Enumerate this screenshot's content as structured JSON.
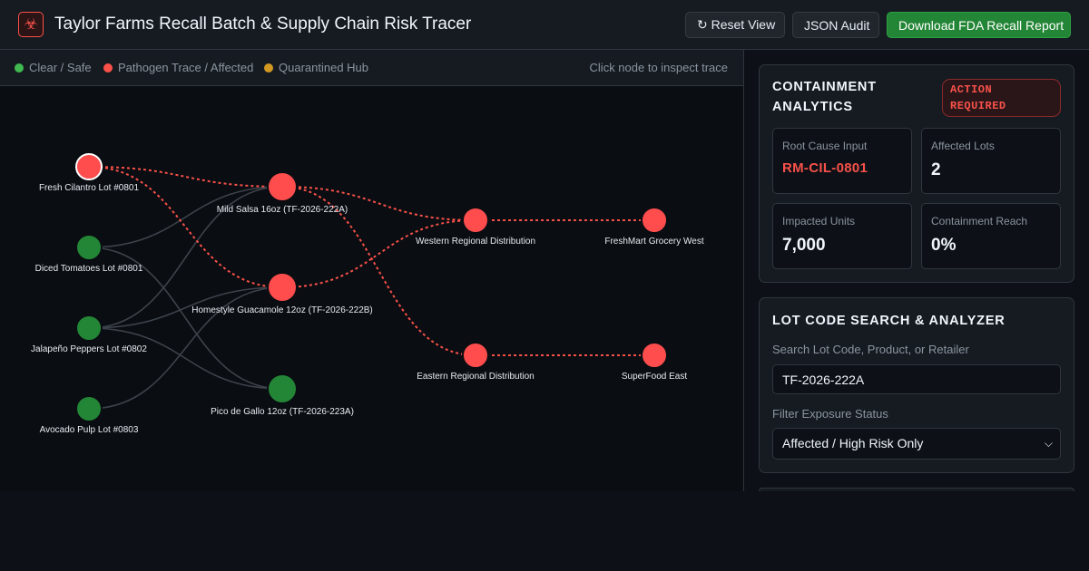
{
  "header": {
    "logo_icon": "biohazard-icon",
    "logo_glyph": "☣",
    "title": "Taylor Farms Recall Batch & Supply Chain Risk Tracer",
    "reset_label": "↻ Reset View",
    "json_label": "JSON Audit",
    "fda_label": "Download FDA Recall Report"
  },
  "legend": {
    "items": [
      {
        "label": "Clear / Safe",
        "color": "#3fb950"
      },
      {
        "label": "Pathogen Trace / Affected",
        "color": "#f85149"
      },
      {
        "label": "Quarantined Hub",
        "color": "#d29922"
      }
    ],
    "hint": "Click node to inspect trace"
  },
  "colors": {
    "affected": "#ff4d4d",
    "safe": "#238636",
    "edge_affected": "#f85149",
    "edge_safe": "#3d434b",
    "accent_green": "#238636"
  },
  "graph": {
    "nodes": [
      {
        "id": "n1",
        "label": "Fresh Cilantro Lot #0801",
        "status": "affected",
        "selected": true
      },
      {
        "id": "n2",
        "label": "Diced Tomatoes Lot #0801",
        "status": "safe"
      },
      {
        "id": "n3",
        "label": "Jalapeño Peppers Lot #0802",
        "status": "safe"
      },
      {
        "id": "n4",
        "label": "Avocado Pulp Lot #0803",
        "status": "safe"
      },
      {
        "id": "n5",
        "label": "Mild Salsa 16oz (TF-2026-222A)",
        "status": "affected"
      },
      {
        "id": "n6",
        "label": "Homestyle Guacamole 12oz (TF-2026-222B)",
        "status": "affected"
      },
      {
        "id": "n7",
        "label": "Pico de Gallo 12oz (TF-2026-223A)",
        "status": "safe"
      },
      {
        "id": "n8",
        "label": "Western Regional Distribution",
        "status": "affected"
      },
      {
        "id": "n9",
        "label": "Eastern Regional Distribution",
        "status": "affected"
      },
      {
        "id": "n10",
        "label": "FreshMart Grocery West",
        "status": "affected"
      },
      {
        "id": "n11",
        "label": "SuperFood East",
        "status": "affected"
      }
    ],
    "edges": [
      {
        "from": "n1",
        "to": "n5",
        "affected": true
      },
      {
        "from": "n1",
        "to": "n6",
        "affected": true
      },
      {
        "from": "n2",
        "to": "n5",
        "affected": false
      },
      {
        "from": "n2",
        "to": "n7",
        "affected": false
      },
      {
        "from": "n3",
        "to": "n6",
        "affected": false
      },
      {
        "from": "n3",
        "to": "n7",
        "affected": false
      },
      {
        "from": "n3",
        "to": "n5",
        "affected": false
      },
      {
        "from": "n4",
        "to": "n6",
        "affected": false
      },
      {
        "from": "n5",
        "to": "n8",
        "affected": true
      },
      {
        "from": "n5",
        "to": "n9",
        "affected": true
      },
      {
        "from": "n6",
        "to": "n8",
        "affected": true
      },
      {
        "from": "n8",
        "to": "n10",
        "affected": true
      },
      {
        "from": "n9",
        "to": "n11",
        "affected": true
      }
    ]
  },
  "analytics": {
    "title": "CONTAINMENT ANALYTICS",
    "badge": "ACTION REQUIRED",
    "stats": [
      {
        "label": "Root Cause Input",
        "value": "RM-CIL-0801"
      },
      {
        "label": "Affected Lots",
        "value": "2"
      },
      {
        "label": "Impacted Units",
        "value": "7,000"
      },
      {
        "label": "Containment Reach",
        "value": "0%"
      }
    ]
  },
  "search": {
    "title": "LOT CODE SEARCH & ANALYZER",
    "search_label": "Search Lot Code, Product, or Retailer",
    "search_value": "TF-2026-222A",
    "filter_label": "Filter Exposure Status",
    "filter_value": "Affected / High Risk Only"
  }
}
